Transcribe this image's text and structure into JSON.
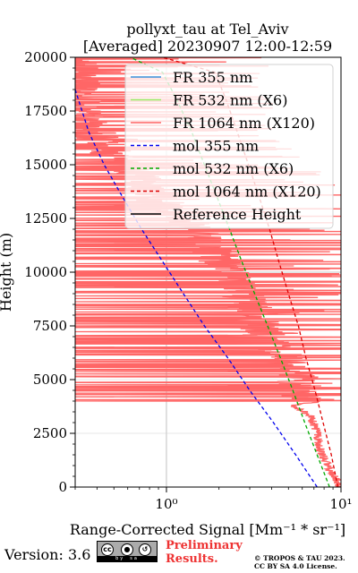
{
  "chart_data": {
    "type": "line",
    "title": "pollyxt_tau at Tel_Aviv",
    "subtitle": "[Averaged] 20230907 12:00-12:59",
    "xlabel": "Range-Corrected Signal [Mm⁻¹ * sr⁻¹]",
    "ylabel": "Height (m)",
    "xscale": "log",
    "xlim": [
      0.3,
      10
    ],
    "ylim": [
      0,
      20000
    ],
    "x_ticks": [
      "10⁰",
      "10¹"
    ],
    "y_ticks": [
      "0",
      "2500",
      "5000",
      "7500",
      "10000",
      "12500",
      "15000",
      "17500",
      "20000"
    ],
    "grid": true,
    "legend_position": "top-right",
    "legend": [
      {
        "label": "FR 355 nm",
        "color": "#3b8fd9",
        "style": "solid"
      },
      {
        "label": "FR 532 nm (X6)",
        "color": "#99ee66",
        "style": "solid"
      },
      {
        "label": "FR 1064 nm (X120)",
        "color": "#ff6666",
        "style": "solid"
      },
      {
        "label": "mol 355 nm",
        "color": "#0000ee",
        "style": "dashed"
      },
      {
        "label": "mol 532 nm (X6)",
        "color": "#00aa00",
        "style": "dashed"
      },
      {
        "label": "mol 1064 nm (X120)",
        "color": "#dd0000",
        "style": "dashed"
      },
      {
        "label": "Reference Height",
        "color": "#000000",
        "style": "solid"
      }
    ],
    "series": [
      {
        "name": "mol 355 nm",
        "style": "dashed",
        "color": "#0000ee",
        "points": [
          [
            7.3,
            0
          ],
          [
            5.5,
            1500
          ],
          [
            4.1,
            3000
          ],
          [
            3.0,
            4500
          ],
          [
            2.25,
            6000
          ],
          [
            1.65,
            7500
          ],
          [
            1.25,
            9000
          ],
          [
            0.95,
            10500
          ],
          [
            0.72,
            12000
          ],
          [
            0.56,
            13500
          ],
          [
            0.44,
            15000
          ],
          [
            0.36,
            16500
          ],
          [
            0.3,
            18500
          ]
        ]
      },
      {
        "name": "mol 532 nm (X6)",
        "style": "dashed",
        "color": "#00aa00",
        "points": [
          [
            8.6,
            0
          ],
          [
            7.3,
            1500
          ],
          [
            6.2,
            3000
          ],
          [
            5.3,
            4500
          ],
          [
            4.5,
            6000
          ],
          [
            3.8,
            7500
          ],
          [
            3.2,
            9000
          ],
          [
            2.7,
            10500
          ],
          [
            2.3,
            12000
          ],
          [
            1.95,
            13500
          ],
          [
            1.65,
            15000
          ],
          [
            1.4,
            16500
          ],
          [
            1.15,
            18000
          ],
          [
            0.95,
            19300
          ],
          [
            0.62,
            20000
          ]
        ]
      },
      {
        "name": "mol 1064 nm (X120)",
        "style": "dashed",
        "color": "#dd0000",
        "points": [
          [
            9.6,
            0
          ],
          [
            8.8,
            1500
          ],
          [
            7.9,
            3000
          ],
          [
            7.1,
            4500
          ],
          [
            6.3,
            6000
          ],
          [
            5.7,
            7500
          ],
          [
            5.0,
            9000
          ],
          [
            4.4,
            10500
          ],
          [
            3.9,
            12000
          ],
          [
            3.4,
            13500
          ],
          [
            2.95,
            15000
          ],
          [
            2.55,
            16500
          ],
          [
            2.2,
            18000
          ],
          [
            1.9,
            19300
          ],
          [
            0.95,
            20000
          ]
        ]
      }
    ],
    "fr_1064_profile": {
      "name": "FR 1064 nm (X120)",
      "color": "#ff6666",
      "description_points": [
        [
          9.9,
          0
        ],
        [
          9.6,
          300
        ],
        [
          9.0,
          600
        ],
        [
          8.5,
          1000
        ],
        [
          7.9,
          1500
        ],
        [
          7.6,
          2000
        ],
        [
          7.4,
          2500
        ],
        [
          7.0,
          3000
        ],
        [
          6.8,
          3300
        ],
        [
          6.0,
          3600
        ],
        [
          5.2,
          3800
        ],
        [
          8.0,
          4000
        ],
        [
          5.5,
          4200
        ],
        [
          6.5,
          4500
        ],
        [
          5.3,
          4900
        ],
        [
          6.2,
          5100
        ],
        [
          5.0,
          5500
        ],
        [
          4.6,
          6000
        ],
        [
          4.3,
          6300
        ],
        [
          3.8,
          6800
        ],
        [
          3.5,
          7300
        ],
        [
          3.3,
          7800
        ],
        [
          3.1,
          8300
        ],
        [
          2.8,
          8800
        ],
        [
          2.5,
          9300
        ],
        [
          2.3,
          9800
        ],
        [
          2.1,
          10300
        ],
        [
          1.9,
          10800
        ],
        [
          1.7,
          11300
        ],
        [
          1.5,
          11800
        ],
        [
          1.3,
          12300
        ],
        [
          1.1,
          12800
        ],
        [
          0.9,
          13300
        ],
        [
          0.8,
          13800
        ],
        [
          0.7,
          14300
        ],
        [
          0.6,
          14800
        ],
        [
          0.5,
          15300
        ],
        [
          0.45,
          15800
        ],
        [
          0.4,
          16300
        ],
        [
          0.35,
          16800
        ],
        [
          0.32,
          17300
        ],
        [
          0.3,
          20000
        ]
      ]
    }
  },
  "footer": {
    "version": "Version: 3.6",
    "license_badge": [
      "cc",
      "by",
      "sa"
    ],
    "preliminary_line1": "Preliminary",
    "preliminary_line2": "Results.",
    "copyright_line1": "© TROPOS & TAU 2023.",
    "copyright_line2": "CC BY SA 4.0 License."
  }
}
